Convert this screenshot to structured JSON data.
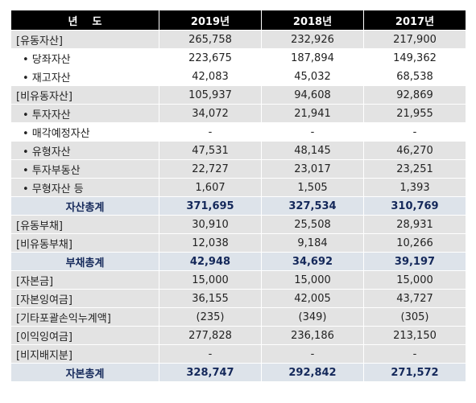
{
  "table": {
    "header": [
      "년    도",
      "2019년",
      "2018년",
      "2017년"
    ],
    "rows": [
      [
        "[유동자산]",
        "265,758",
        "232,926",
        "217,900"
      ],
      [
        "• 당좌자산",
        "223,675",
        "187,894",
        "149,362"
      ],
      [
        "• 재고자산",
        "42,083",
        "45,032",
        "68,538"
      ],
      [
        "[비유동자산]",
        "105,937",
        "94,608",
        "92,869"
      ],
      [
        "• 투자자산",
        "34,072",
        "21,941",
        "21,955"
      ],
      [
        "• 매각예정자산",
        "-",
        "-",
        "-"
      ],
      [
        "• 유형자산",
        "47,531",
        "48,145",
        "46,270"
      ],
      [
        "• 투자부동산",
        "22,727",
        "23,017",
        "23,251"
      ],
      [
        "• 무형자산 등",
        "1,607",
        "1,505",
        "1,393"
      ],
      [
        "자산총계",
        "371,695",
        "327,534",
        "310,769"
      ],
      [
        "[유동부채]",
        "30,910",
        "25,508",
        "28,931"
      ],
      [
        "[비유동부채]",
        "12,038",
        "9,184",
        "10,266"
      ],
      [
        "부채총계",
        "42,948",
        "34,692",
        "39,197"
      ],
      [
        "[자본금]",
        "15,000",
        "15,000",
        "15,000"
      ],
      [
        "[자본잉여금]",
        "36,155",
        "42,005",
        "43,727"
      ],
      [
        "[기타포괄손익누계액]",
        "(235)",
        "(349)",
        "(305)"
      ],
      [
        "[이익잉여금]",
        "277,828",
        "236,186",
        "213,150"
      ],
      [
        "[비지배지분]",
        "-",
        "-",
        "-"
      ],
      [
        "자본총계",
        "328,747",
        "292,842",
        "271,572"
      ]
    ]
  }
}
